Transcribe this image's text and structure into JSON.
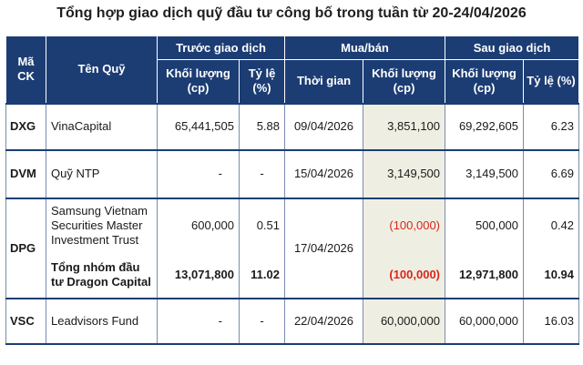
{
  "title": "Tổng hợp giao dịch quỹ đầu tư công bố trong tuần từ 20-24/04/2026",
  "header": {
    "ma_ck": "Mã CK",
    "ten_quy": "Tên Quỹ",
    "truoc": "Trước giao dịch",
    "muaban": "Mua/bán",
    "sau": "Sau giao dịch",
    "khoi_luong": "Khối lượng (cp)",
    "ty_le": "Tỷ lệ (%)",
    "thoi_gian": "Thời gian",
    "ty_le_sau": "Tỷ lệ (%)"
  },
  "rows": {
    "dxg": {
      "code": "DXG",
      "fund": "VinaCapital",
      "kl_truoc": "65,441,505",
      "tl_truoc": "5.88",
      "time": "09/04/2026",
      "kl_mb": "3,851,100",
      "kl_sau": "69,292,605",
      "tl_sau": "6.23"
    },
    "dvm": {
      "code": "DVM",
      "fund": "Quỹ NTP",
      "kl_truoc": "-",
      "tl_truoc": "-",
      "time": "15/04/2026",
      "kl_mb": "3,149,500",
      "kl_sau": "3,149,500",
      "tl_sau": "6.69"
    },
    "dpg": {
      "code": "DPG",
      "time": "17/04/2026"
    },
    "dpg1": {
      "fund": "Samsung Vietnam Securities Master Investment  Trust",
      "kl_truoc": "600,000",
      "tl_truoc": "0.51",
      "kl_mb": "(100,000)",
      "kl_sau": "500,000",
      "tl_sau": "0.42"
    },
    "dpg2": {
      "fund": "Tổng nhóm đầu tư Dragon Capital",
      "kl_truoc": "13,071,800",
      "tl_truoc": "11.02",
      "kl_mb": "(100,000)",
      "kl_sau": "12,971,800",
      "tl_sau": "10.94"
    },
    "vsc": {
      "code": "VSC",
      "fund": "Leadvisors Fund",
      "kl_truoc": "-",
      "tl_truoc": "-",
      "time": "22/04/2026",
      "kl_mb": "60,000,000",
      "kl_sau": "60,000,000",
      "tl_sau": "16.03"
    }
  }
}
